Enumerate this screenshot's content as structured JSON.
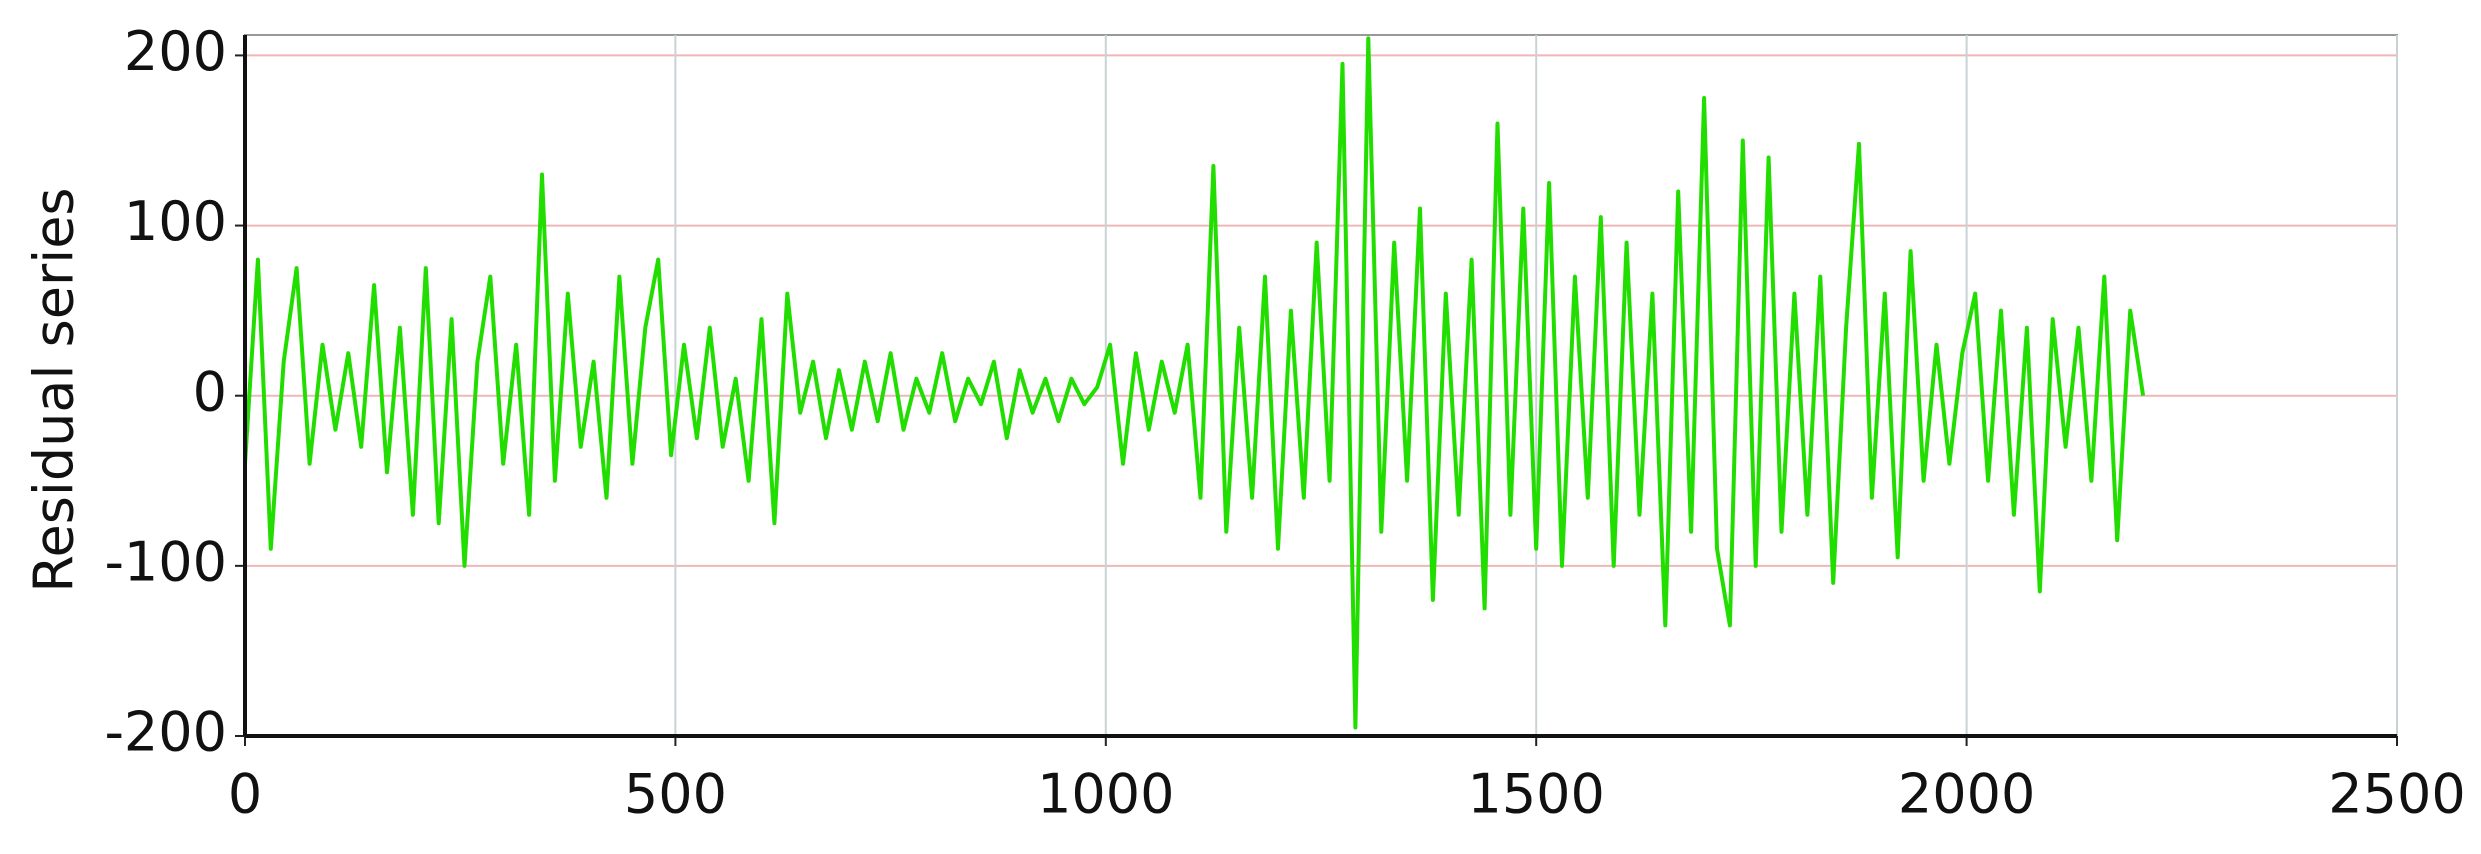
{
  "chart_data": {
    "type": "line",
    "ylabel": "Residual series",
    "x": [
      0,
      15,
      30,
      45,
      60,
      75,
      90,
      105,
      120,
      135,
      150,
      165,
      180,
      195,
      210,
      225,
      240,
      255,
      270,
      285,
      300,
      315,
      330,
      345,
      360,
      375,
      390,
      405,
      420,
      435,
      450,
      465,
      480,
      495,
      510,
      525,
      540,
      555,
      570,
      585,
      600,
      615,
      630,
      645,
      660,
      675,
      690,
      705,
      720,
      735,
      750,
      765,
      780,
      795,
      810,
      825,
      840,
      855,
      870,
      885,
      900,
      915,
      930,
      945,
      960,
      975,
      990,
      1005,
      1020,
      1035,
      1050,
      1065,
      1080,
      1095,
      1110,
      1125,
      1140,
      1155,
      1170,
      1185,
      1200,
      1215,
      1230,
      1245,
      1260,
      1275,
      1290,
      1305,
      1320,
      1335,
      1350,
      1365,
      1380,
      1395,
      1410,
      1425,
      1440,
      1455,
      1470,
      1485,
      1500,
      1515,
      1530,
      1545,
      1560,
      1575,
      1590,
      1605,
      1620,
      1635,
      1650,
      1665,
      1680,
      1695,
      1710,
      1725,
      1740,
      1755,
      1770,
      1785,
      1800,
      1815,
      1830,
      1845,
      1860,
      1875,
      1890,
      1905,
      1920,
      1935,
      1950,
      1965,
      1980,
      1995,
      2010,
      2025,
      2040,
      2055,
      2070,
      2085,
      2100,
      2115,
      2130,
      2145,
      2160,
      2175,
      2190,
      2205
    ],
    "series": [
      {
        "color": "#22dd00",
        "values": [
          -40,
          80,
          -90,
          20,
          75,
          -40,
          30,
          -20,
          25,
          -30,
          65,
          -45,
          40,
          -70,
          75,
          -75,
          45,
          -100,
          20,
          70,
          -40,
          30,
          -70,
          130,
          -50,
          60,
          -30,
          20,
          -60,
          70,
          -40,
          40,
          80,
          -35,
          30,
          -25,
          40,
          -30,
          10,
          -50,
          45,
          -75,
          60,
          -10,
          20,
          -25,
          15,
          -20,
          20,
          -15,
          25,
          -20,
          10,
          -10,
          25,
          -15,
          10,
          -5,
          20,
          -25,
          15,
          -10,
          10,
          -15,
          10,
          -5,
          5,
          30,
          -40,
          25,
          -20,
          20,
          -10,
          30,
          -60,
          135,
          -80,
          40,
          -60,
          70,
          -90,
          50,
          -60,
          90,
          -50,
          195,
          -195,
          210,
          -80,
          90,
          -50,
          110,
          -120,
          60,
          -70,
          80,
          -125,
          160,
          -70,
          110,
          -90,
          125,
          -100,
          70,
          -60,
          105,
          -100,
          90,
          -70,
          60,
          -135,
          120,
          -80,
          175,
          -90,
          -135,
          150,
          -100,
          140,
          -80,
          60,
          -70,
          70,
          -110,
          40,
          148,
          -60,
          60,
          -95,
          85,
          -50,
          30,
          -40,
          25,
          60,
          -50,
          50,
          -70,
          40,
          -115,
          45,
          -30,
          40,
          -50,
          70,
          -85,
          50,
          0
        ]
      }
    ],
    "xlim": [
      0,
      2500
    ],
    "xticks": [
      0,
      500,
      1000,
      1500,
      2000,
      2500
    ],
    "ylim": [
      -200,
      212
    ],
    "yticks": [
      -200,
      -100,
      0,
      100,
      200
    ],
    "grid": true
  }
}
